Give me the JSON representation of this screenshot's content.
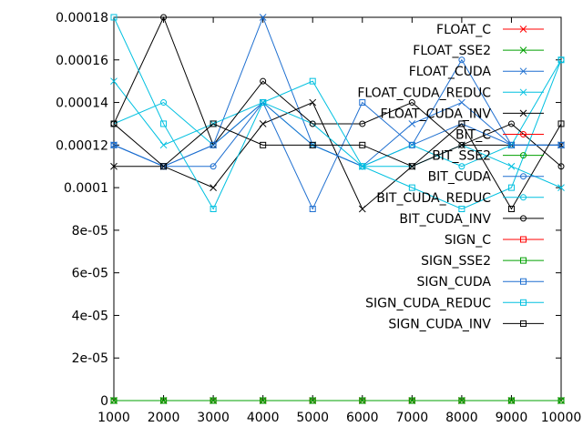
{
  "chart_data": {
    "type": "line",
    "title": "",
    "xlabel": "",
    "ylabel": "",
    "x": [
      1000,
      2000,
      3000,
      4000,
      5000,
      6000,
      7000,
      8000,
      9000,
      10000
    ],
    "x_tick_labels": [
      "1000",
      "2000",
      "3000",
      "4000",
      "5000",
      "6000",
      "7000",
      "8000",
      "9000",
      "10000"
    ],
    "y_ticks": [
      0,
      2e-05,
      4e-05,
      6e-05,
      8e-05,
      0.0001,
      0.00012,
      0.00014,
      0.00016,
      0.00018
    ],
    "y_tick_labels": [
      "0",
      "2e-05",
      "4e-05",
      "6e-05",
      "8e-05",
      "0.0001",
      "0.00012",
      "0.00014",
      "0.00016",
      "0.00018"
    ],
    "xlim": [
      1000,
      10000
    ],
    "ylim": [
      0,
      0.00018
    ],
    "grid": false,
    "legend_position": "top-right",
    "series": [
      {
        "name": "FLOAT_C",
        "color": "#ff0000",
        "marker": "cross",
        "values": [
          0,
          0,
          0,
          0,
          0,
          0,
          0,
          0,
          0,
          0
        ]
      },
      {
        "name": "FLOAT_SSE2",
        "color": "#00a000",
        "marker": "cross",
        "values": [
          0,
          0,
          0,
          0,
          0,
          0,
          0,
          0,
          0,
          0
        ]
      },
      {
        "name": "FLOAT_CUDA",
        "color": "#1e6fd0",
        "marker": "cross",
        "values": [
          0.00012,
          0.00011,
          0.00012,
          0.00018,
          0.00012,
          0.00011,
          0.00013,
          0.00014,
          0.00012,
          0.00012
        ]
      },
      {
        "name": "FLOAT_CUDA_REDUC",
        "color": "#00c0e0",
        "marker": "cross",
        "values": [
          0.00015,
          0.00012,
          0.00013,
          0.00014,
          0.00012,
          0.00011,
          0.00011,
          0.00012,
          0.00011,
          0.0001
        ]
      },
      {
        "name": "FLOAT_CUDA_INV",
        "color": "#000000",
        "marker": "cross",
        "values": [
          0.00011,
          0.00011,
          0.0001,
          0.00013,
          0.00014,
          9e-05,
          0.00011,
          0.00012,
          0.00012,
          0.00012
        ]
      },
      {
        "name": "BIT_C",
        "color": "#ff0000",
        "marker": "circle",
        "values": [
          0,
          0,
          0,
          0,
          0,
          0,
          0,
          0,
          0,
          0
        ]
      },
      {
        "name": "BIT_SSE2",
        "color": "#00a000",
        "marker": "circle",
        "values": [
          0,
          0,
          0,
          0,
          0,
          0,
          0,
          0,
          0,
          0
        ]
      },
      {
        "name": "BIT_CUDA",
        "color": "#1e6fd0",
        "marker": "circle",
        "values": [
          0.00012,
          0.00011,
          0.00011,
          0.00014,
          0.00012,
          0.00011,
          0.00012,
          0.00016,
          0.00012,
          0.00012
        ]
      },
      {
        "name": "BIT_CUDA_REDUC",
        "color": "#00c0e0",
        "marker": "circle",
        "values": [
          0.00013,
          0.00014,
          0.00012,
          0.00014,
          0.00013,
          0.00011,
          0.00012,
          0.00011,
          0.00012,
          0.00016
        ]
      },
      {
        "name": "BIT_CUDA_INV",
        "color": "#000000",
        "marker": "circle",
        "values": [
          0.00013,
          0.00018,
          0.00012,
          0.00015,
          0.00013,
          0.00013,
          0.00014,
          0.00012,
          0.00013,
          0.00011
        ]
      },
      {
        "name": "SIGN_C",
        "color": "#ff0000",
        "marker": "square",
        "values": [
          0,
          0,
          0,
          0,
          0,
          0,
          0,
          0,
          0,
          0
        ]
      },
      {
        "name": "SIGN_SSE2",
        "color": "#00a000",
        "marker": "square",
        "values": [
          0,
          0,
          0,
          0,
          0,
          0,
          0,
          0,
          0,
          0
        ]
      },
      {
        "name": "SIGN_CUDA",
        "color": "#1e6fd0",
        "marker": "square",
        "values": [
          0.00012,
          0.00011,
          0.00012,
          0.00014,
          9e-05,
          0.00014,
          0.00012,
          0.00013,
          0.00012,
          0.00012
        ]
      },
      {
        "name": "SIGN_CUDA_REDUC",
        "color": "#00c0e0",
        "marker": "square",
        "values": [
          0.00018,
          0.00013,
          9e-05,
          0.00014,
          0.00015,
          0.00011,
          0.0001,
          9e-05,
          0.0001,
          0.00016
        ]
      },
      {
        "name": "SIGN_CUDA_INV",
        "color": "#000000",
        "marker": "square",
        "values": [
          0.00013,
          0.00011,
          0.00013,
          0.00012,
          0.00012,
          0.00012,
          0.00011,
          0.00013,
          9e-05,
          0.00013
        ]
      }
    ]
  }
}
